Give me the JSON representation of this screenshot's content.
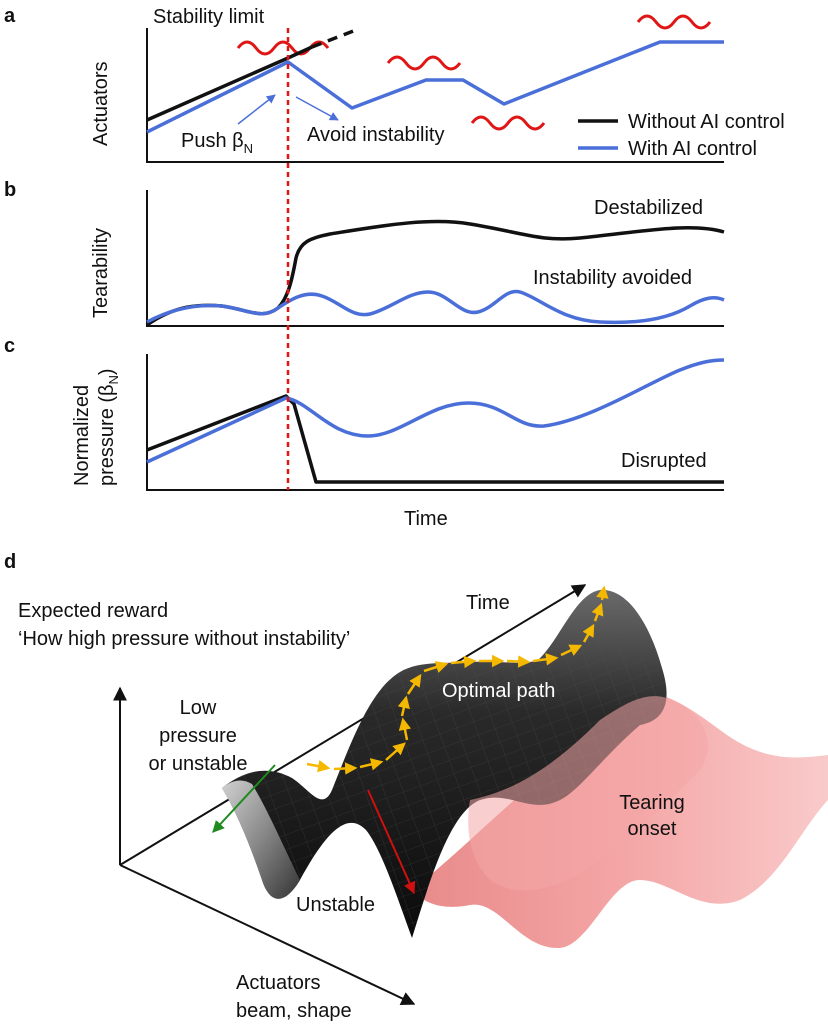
{
  "panel_a": {
    "letter": "a",
    "ylabel": "Actuators",
    "stability_limit": "Stability limit",
    "push_label": "Push β",
    "push_sub": "N",
    "avoid_label": "Avoid instability",
    "legend": [
      {
        "label": "Without AI control",
        "color": "#111111"
      },
      {
        "label": "With AI control",
        "color": "#4a6fd8"
      }
    ]
  },
  "panel_b": {
    "letter": "b",
    "ylabel": "Tearability",
    "destabilized": "Destabilized",
    "avoided": "Instability avoided"
  },
  "panel_c": {
    "letter": "c",
    "ylabel_line1": "Normalized",
    "ylabel_line2": "pressure (β",
    "ylabel_sub": "N",
    "ylabel_close": ")",
    "disrupted": "Disrupted",
    "xlabel": "Time"
  },
  "panel_d": {
    "letter": "d",
    "reward_line1": "Expected reward",
    "reward_line2": "‘How high pressure without instability’",
    "time_label": "Time",
    "low_line1": "Low",
    "low_line2": "pressure",
    "low_line3": "or unstable",
    "optimal_path": "Optimal path",
    "tearing_line1": "Tearing",
    "tearing_line2": "onset",
    "unstable": "Unstable",
    "actuators_line1": "Actuators",
    "actuators_line2": "beam, shape"
  },
  "colors": {
    "without_ai": "#111111",
    "with_ai": "#4a6fd8",
    "instability_wave": "#e01515",
    "stability_limit_marker": "#e01515",
    "optimal_path": "#f5b800",
    "tearing_region": "#f4a5a5"
  }
}
